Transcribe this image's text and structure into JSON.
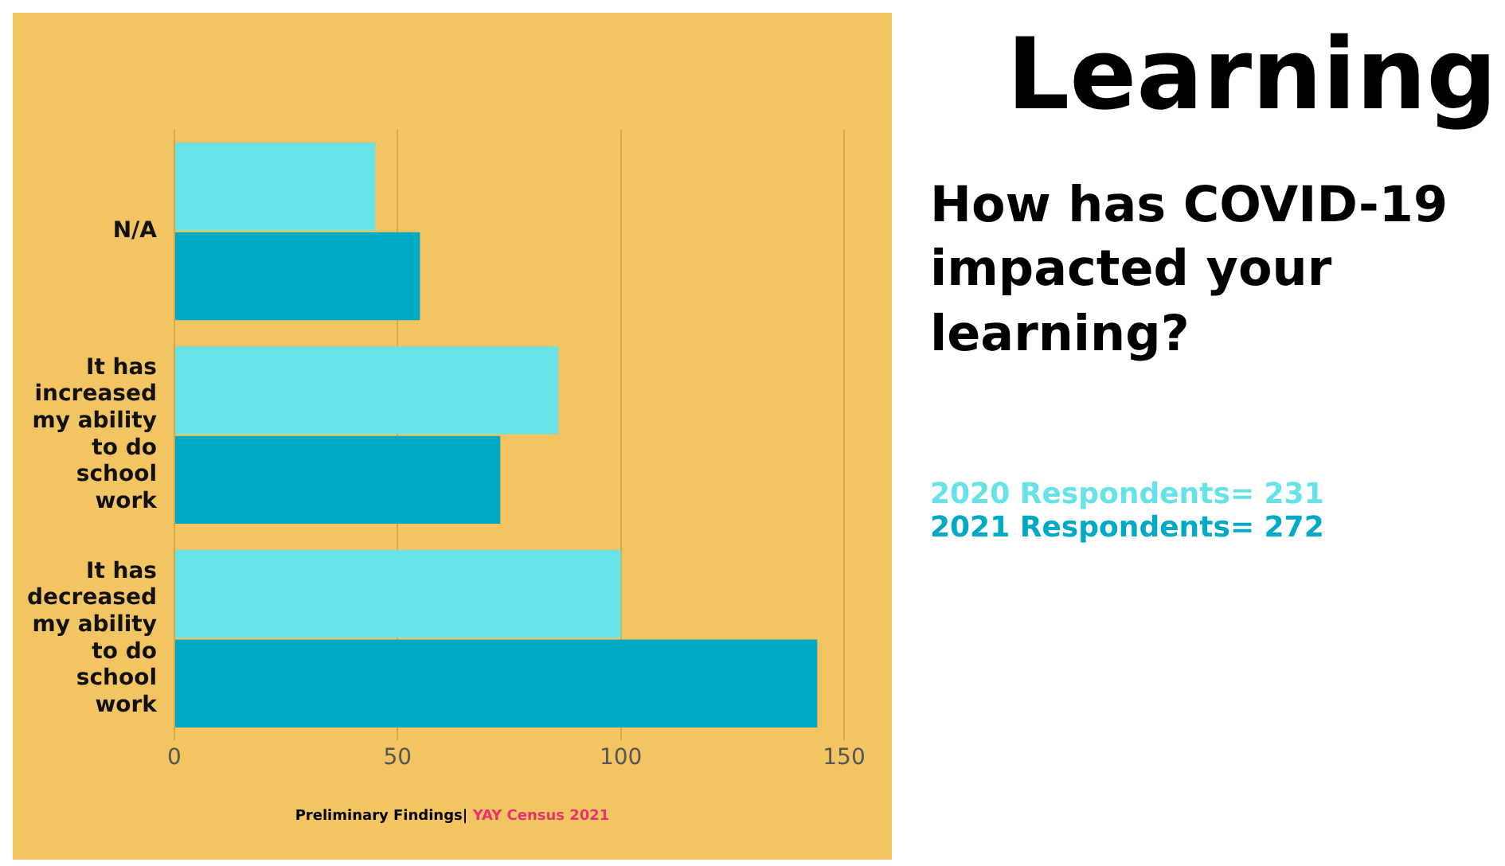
{
  "chart_data": {
    "type": "bar",
    "orientation": "horizontal",
    "title": "Learning",
    "subtitle": "How has COVID-19 impacted your learning?",
    "categories": [
      "N/A",
      "It has increased my ability to do school work",
      "It has decreased my ability to do school work"
    ],
    "series": [
      {
        "name": "2020 Respondents= 231",
        "color": "#67e3e8",
        "values": [
          45,
          86,
          100
        ]
      },
      {
        "name": "2021 Respondents= 272",
        "color": "#00aac4",
        "values": [
          55,
          73,
          144
        ]
      }
    ],
    "xlim": [
      0,
      150
    ],
    "xticks": [
      0,
      50,
      100,
      150
    ],
    "grid": "x",
    "legend": "right",
    "annotations": [
      "Preliminary Findings|",
      "YAY Census 2021"
    ]
  }
}
